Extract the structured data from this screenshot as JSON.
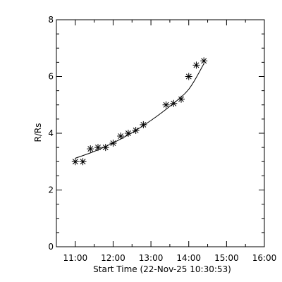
{
  "chart_data": {
    "type": "scatter",
    "xlabel": "Start Time (22-Nov-25 10:30:53)",
    "ylabel": "R/Rs",
    "xlim": [
      "10:30",
      "16:00"
    ],
    "ylim": [
      0,
      8
    ],
    "x_ticks": [
      "11:00",
      "12:00",
      "13:00",
      "14:00",
      "15:00",
      "16:00"
    ],
    "y_ticks": [
      "0",
      "2",
      "4",
      "6",
      "8"
    ],
    "grid": false,
    "legend": "none",
    "marker": "asterisk",
    "series": [
      {
        "points": [
          {
            "t": "11:00",
            "r": 3.0
          },
          {
            "t": "11:12",
            "r": 3.0
          },
          {
            "t": "11:24",
            "r": 3.45
          },
          {
            "t": "11:36",
            "r": 3.5
          },
          {
            "t": "11:48",
            "r": 3.5
          },
          {
            "t": "12:00",
            "r": 3.65
          },
          {
            "t": "12:12",
            "r": 3.9
          },
          {
            "t": "12:24",
            "r": 4.0
          },
          {
            "t": "12:36",
            "r": 4.1
          },
          {
            "t": "12:48",
            "r": 4.3
          },
          {
            "t": "13:24",
            "r": 5.0
          },
          {
            "t": "13:36",
            "r": 5.05
          },
          {
            "t": "13:48",
            "r": 5.2
          },
          {
            "t": "14:00",
            "r": 6.0
          },
          {
            "t": "14:12",
            "r": 6.4
          },
          {
            "t": "14:24",
            "r": 6.55
          }
        ]
      }
    ],
    "fit": {
      "type": "curve",
      "points": [
        {
          "t": "11:00",
          "r": 3.12
        },
        {
          "t": "11:30",
          "r": 3.36
        },
        {
          "t": "12:00",
          "r": 3.66
        },
        {
          "t": "12:30",
          "r": 4.02
        },
        {
          "t": "13:00",
          "r": 4.45
        },
        {
          "t": "13:30",
          "r": 4.95
        },
        {
          "t": "14:00",
          "r": 5.55
        },
        {
          "t": "14:24",
          "r": 6.45
        }
      ]
    }
  }
}
